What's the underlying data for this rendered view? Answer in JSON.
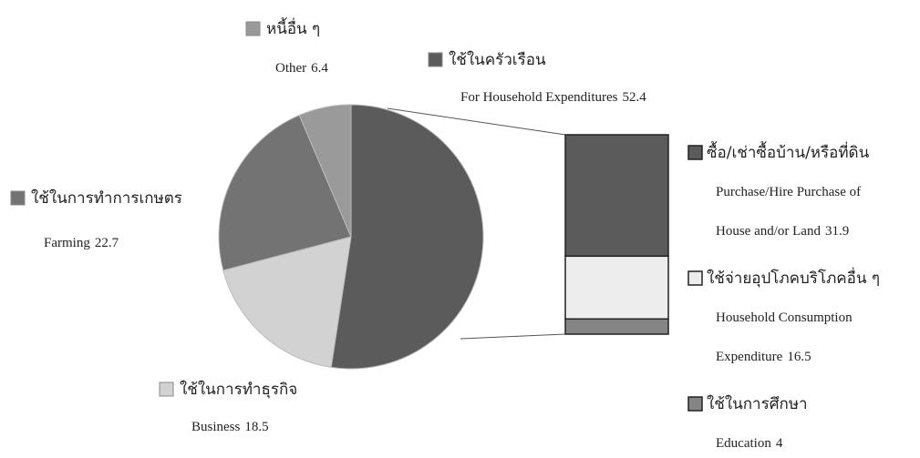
{
  "chart_data": {
    "type": "pie",
    "slices": [
      {
        "name": "ใช้ในครัวเรือน",
        "label": "For Household Expenditures",
        "value": 52.4,
        "color": "#5b5b5b"
      },
      {
        "name": "ใช้ในการทำธุรกิจ",
        "label": "Business",
        "value": 18.5,
        "color": "#d2d2d2"
      },
      {
        "name": "ใช้ในการทำการเกษตร",
        "label": "Farming",
        "value": 22.7,
        "color": "#737373"
      },
      {
        "name": "หนี้อื่น ๆ",
        "label": "Other",
        "value": 6.4,
        "color": "#9a9a9a"
      }
    ],
    "breakdown": [
      {
        "name": "ซื้อ/เช่าซื้อบ้าน/หรือที่ดิน",
        "label_lines": [
          "Purchase/Hire Purchase of",
          "House and/or Land"
        ],
        "value": 31.9,
        "color": "#5b5b5b"
      },
      {
        "name": "ใช้จ่ายอุปโภคบริโภคอื่น ๆ",
        "label_lines": [
          "Household Consumption",
          "Expenditure"
        ],
        "value": 16.5,
        "color": "#ededed"
      },
      {
        "name": "ใช้ในการศึกษา",
        "label_lines": [
          "Education"
        ],
        "value": 4.0,
        "color": "#858585"
      }
    ]
  }
}
